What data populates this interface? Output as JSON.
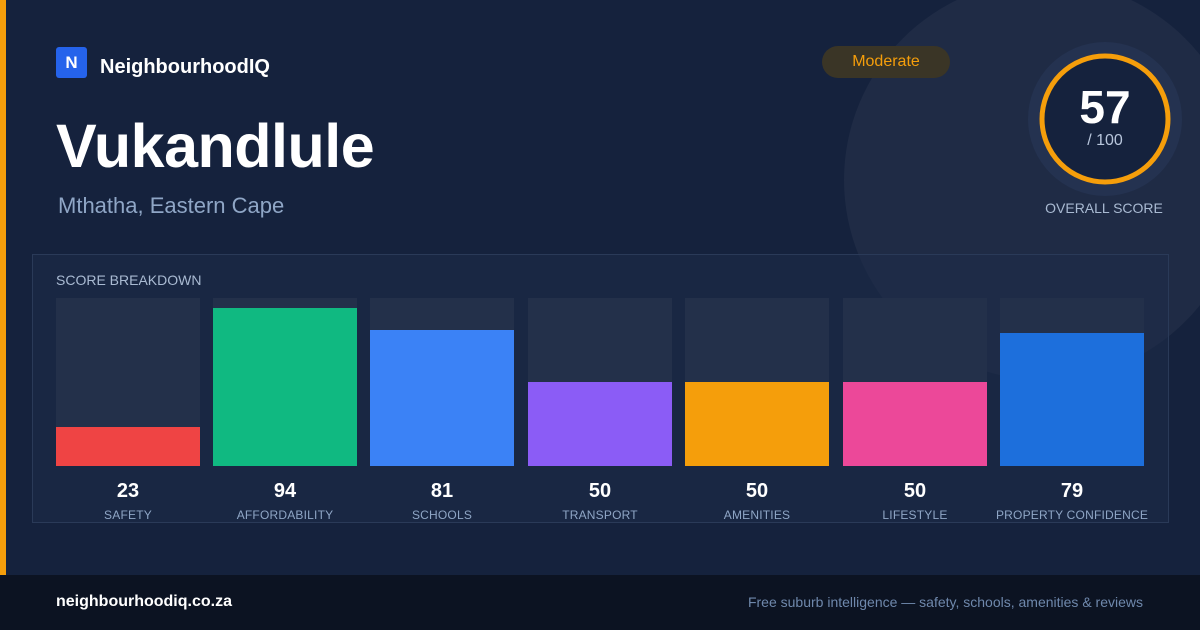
{
  "brand": {
    "logo_letter": "N",
    "name": "NeighbourhoodIQ"
  },
  "suburb": {
    "name": "Vukandlule",
    "location": "Mthatha, Eastern Cape"
  },
  "rating_badge": {
    "label": "Moderate",
    "color": "#f59e0b"
  },
  "overall": {
    "score": "57",
    "max": "/ 100",
    "score_value": 57,
    "caption": "OVERALL SCORE",
    "ring_color": "#f59e0b"
  },
  "breakdown": {
    "title": "SCORE BREAKDOWN",
    "items": [
      {
        "label": "SAFETY",
        "value": "23",
        "score": 23,
        "color": "#ef4444"
      },
      {
        "label": "AFFORDABILITY",
        "value": "94",
        "score": 94,
        "color": "#10b981"
      },
      {
        "label": "SCHOOLS",
        "value": "81",
        "score": 81,
        "color": "#3b82f6"
      },
      {
        "label": "TRANSPORT",
        "value": "50",
        "score": 50,
        "color": "#8b5cf6"
      },
      {
        "label": "AMENITIES",
        "value": "50",
        "score": 50,
        "color": "#f59e0b"
      },
      {
        "label": "LIFESTYLE",
        "value": "50",
        "score": 50,
        "color": "#ec4899"
      },
      {
        "label": "PROPERTY CONFIDENCE",
        "value": "79",
        "score": 79,
        "color": "#1d6fdc"
      }
    ]
  },
  "footer": {
    "site": "neighbourhoodiq.co.za",
    "tagline": "Free suburb intelligence — safety, schools, amenities & reviews"
  }
}
